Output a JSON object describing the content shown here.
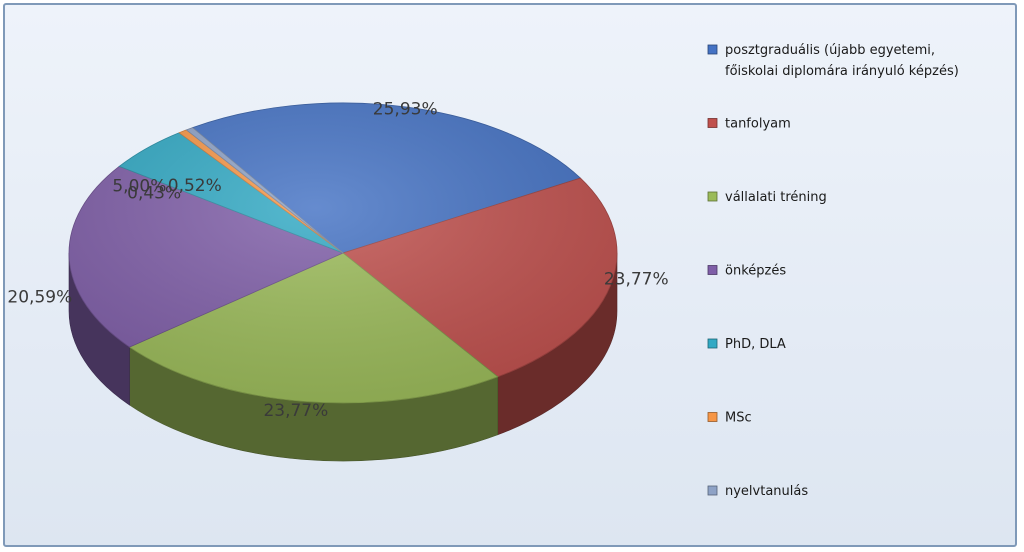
{
  "chart_data": {
    "type": "pie",
    "title": "",
    "legend_position": "right",
    "series": [
      {
        "label": "posztgraduális (újabb egyetemi, főiskolai diplomára irányuló képzés)",
        "legend_lines": [
          "posztgraduális (újabb egyetemi,",
          "főiskolai diplomára irányuló képzés)"
        ],
        "value": 25.93,
        "value_label": "25,93%",
        "color": "#4472c4"
      },
      {
        "label": "tanfolyam",
        "legend_lines": [
          "tanfolyam"
        ],
        "value": 23.77,
        "value_label": "23,77%",
        "color": "#c0504d"
      },
      {
        "label": "vállalati tréning",
        "legend_lines": [
          "vállalati tréning"
        ],
        "value": 23.77,
        "value_label": "23,77%",
        "color": "#9bbb59"
      },
      {
        "label": "önképzés",
        "legend_lines": [
          "önképzés"
        ],
        "value": 20.59,
        "value_label": "20,59%",
        "color": "#7f5ea8"
      },
      {
        "label": "PhD, DLA",
        "legend_lines": [
          "PhD, DLA"
        ],
        "value": 5.0,
        "value_label": "5,00%",
        "color": "#31a9c4"
      },
      {
        "label": "MSc",
        "legend_lines": [
          "MSc"
        ],
        "value": 0.52,
        "value_label": "0,52%",
        "color": "#f79646"
      },
      {
        "label": "nyelvtanulás",
        "legend_lines": [
          "nyelvtanulás"
        ],
        "value": 0.43,
        "value_label": "0,43%",
        "color": "#8ea2c6"
      }
    ]
  }
}
